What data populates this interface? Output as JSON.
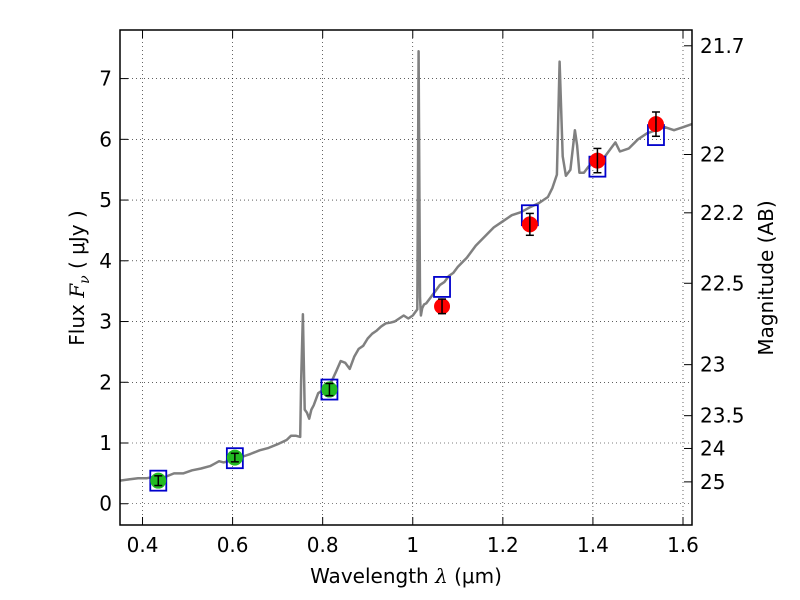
{
  "chart_data": {
    "type": "scatter",
    "xlabel": {
      "prefix": "Wavelength ",
      "symbol": "λ",
      "units": " (μm)"
    },
    "ylabel": {
      "prefix": "Flux ",
      "symbol": "F",
      "subscript": "ν",
      "units": " ( μJy )"
    },
    "y2label": "Magnitude (AB)",
    "xlim": [
      0.35,
      1.62
    ],
    "ylim": [
      -0.35,
      7.8
    ],
    "grid": true,
    "x_ticks": [
      0.4,
      0.6,
      0.8,
      1.0,
      1.2,
      1.4,
      1.6
    ],
    "x_tick_labels": [
      "0.4",
      "0.6",
      "0.8",
      "1",
      "1.2",
      "1.4",
      "1.6"
    ],
    "y_ticks": [
      0,
      1,
      2,
      3,
      4,
      5,
      6,
      7
    ],
    "y_tick_labels": [
      "0",
      "1",
      "2",
      "3",
      "4",
      "5",
      "6",
      "7"
    ],
    "y2_ticks": [
      {
        "label": "21.7",
        "flux": 7.54
      },
      {
        "label": "22",
        "flux": 5.75
      },
      {
        "label": "22.2",
        "flux": 4.79
      },
      {
        "label": "22.5",
        "flux": 3.63
      },
      {
        "label": "23",
        "flux": 2.29
      },
      {
        "label": "23.5",
        "flux": 1.45
      },
      {
        "label": "24",
        "flux": 0.91
      },
      {
        "label": "25",
        "flux": 0.36
      }
    ],
    "spectrum": {
      "color": "#808080",
      "x": [
        0.35,
        0.37,
        0.39,
        0.41,
        0.43,
        0.45,
        0.47,
        0.49,
        0.51,
        0.53,
        0.55,
        0.56,
        0.57,
        0.58,
        0.6,
        0.62,
        0.64,
        0.66,
        0.68,
        0.7,
        0.72,
        0.73,
        0.74,
        0.75,
        0.752,
        0.756,
        0.76,
        0.765,
        0.77,
        0.775,
        0.78,
        0.79,
        0.8,
        0.81,
        0.82,
        0.83,
        0.84,
        0.85,
        0.86,
        0.87,
        0.88,
        0.89,
        0.9,
        0.91,
        0.92,
        0.93,
        0.94,
        0.95,
        0.96,
        0.97,
        0.98,
        0.99,
        1.0,
        1.01,
        1.013,
        1.016,
        1.018,
        1.021,
        1.025,
        1.03,
        1.04,
        1.05,
        1.06,
        1.07,
        1.08,
        1.09,
        1.1,
        1.12,
        1.14,
        1.16,
        1.18,
        1.2,
        1.22,
        1.24,
        1.26,
        1.28,
        1.3,
        1.31,
        1.32,
        1.326,
        1.333,
        1.34,
        1.35,
        1.36,
        1.365,
        1.37,
        1.38,
        1.39,
        1.4,
        1.42,
        1.44,
        1.45,
        1.46,
        1.48,
        1.5,
        1.52,
        1.54,
        1.56,
        1.58,
        1.6,
        1.62
      ],
      "y": [
        0.38,
        0.4,
        0.42,
        0.42,
        0.45,
        0.44,
        0.5,
        0.5,
        0.55,
        0.58,
        0.62,
        0.66,
        0.7,
        0.68,
        0.72,
        0.77,
        0.82,
        0.88,
        0.92,
        0.98,
        1.05,
        1.12,
        1.12,
        1.1,
        2.0,
        3.12,
        1.55,
        1.5,
        1.4,
        1.55,
        1.62,
        1.82,
        1.87,
        1.95,
        2.02,
        2.18,
        2.35,
        2.32,
        2.22,
        2.42,
        2.55,
        2.6,
        2.72,
        2.8,
        2.85,
        2.92,
        2.97,
        2.98,
        3.0,
        3.05,
        3.1,
        3.05,
        3.1,
        3.2,
        7.45,
        3.4,
        3.1,
        3.22,
        3.28,
        3.3,
        3.4,
        3.5,
        3.6,
        3.65,
        3.75,
        3.8,
        3.9,
        4.05,
        4.25,
        4.4,
        4.55,
        4.65,
        4.75,
        4.8,
        4.88,
        4.95,
        5.05,
        5.2,
        5.42,
        7.28,
        5.72,
        5.4,
        5.5,
        6.15,
        5.9,
        5.45,
        5.45,
        5.55,
        5.6,
        5.65,
        5.85,
        5.95,
        5.8,
        5.85,
        6.0,
        6.1,
        6.15,
        6.2,
        6.15,
        6.2,
        6.25
      ]
    },
    "series": [
      {
        "marker": "square",
        "color": "#0000cc",
        "x": [
          0.435,
          0.605,
          0.815,
          1.065,
          1.26,
          1.41,
          1.54
        ],
        "y": [
          0.38,
          0.75,
          1.88,
          3.57,
          4.75,
          5.55,
          6.07
        ]
      },
      {
        "marker": "circle",
        "color": "#22bb22",
        "x": [
          0.435,
          0.605,
          0.815
        ],
        "y": [
          0.38,
          0.76,
          1.88
        ],
        "err": [
          0.08,
          0.07,
          0.1
        ]
      },
      {
        "marker": "circle",
        "color": "#ff0000",
        "x": [
          1.065,
          1.26,
          1.41,
          1.54
        ],
        "y": [
          3.25,
          4.6,
          5.65,
          6.25
        ],
        "err": [
          0.12,
          0.18,
          0.2,
          0.2
        ]
      }
    ]
  }
}
